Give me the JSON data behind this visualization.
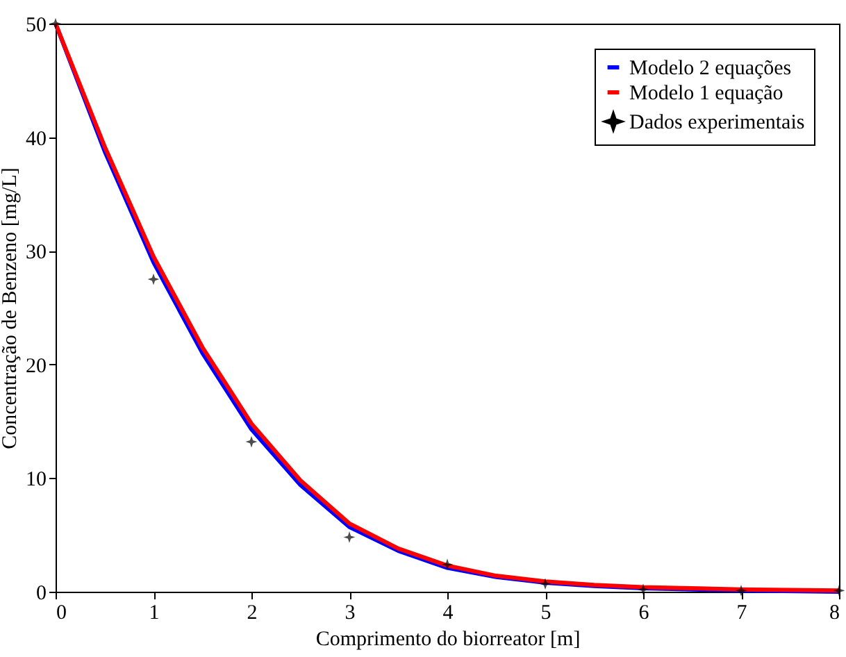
{
  "chart_data": {
    "type": "line",
    "xlabel": "Comprimento do biorreator [m]",
    "ylabel": "Concentração de Benzeno [mg/L]",
    "xlim": [
      0,
      8
    ],
    "xticks": [
      0,
      1,
      2,
      3,
      4,
      5,
      6,
      7,
      8
    ],
    "ylim": [
      0,
      50
    ],
    "yticks": [
      0,
      10,
      20,
      30,
      40,
      50
    ],
    "grid": false,
    "legend": "top right",
    "line_style": "solid",
    "series": [
      {
        "name": "Modelo 2 equações",
        "type": "line",
        "color": "#0000ff",
        "x": [
          0,
          0.5,
          1,
          1.5,
          2,
          2.5,
          3,
          3.5,
          4,
          4.5,
          5,
          5.5,
          6,
          7,
          8
        ],
        "values": [
          50,
          38.8,
          29,
          21,
          14.3,
          9.4,
          5.7,
          3.6,
          2.1,
          1.3,
          0.8,
          0.5,
          0.3,
          0.1,
          0.0
        ]
      },
      {
        "name": "Modelo 1 equação",
        "type": "line",
        "color": "#ff0000",
        "x": [
          0,
          0.5,
          1,
          1.5,
          2,
          2.5,
          3,
          3.5,
          4,
          4.5,
          5,
          5.5,
          6,
          7,
          8
        ],
        "values": [
          50,
          39.2,
          29.5,
          21.5,
          14.8,
          9.8,
          6.0,
          3.8,
          2.3,
          1.4,
          0.9,
          0.6,
          0.4,
          0.2,
          0.1
        ]
      },
      {
        "name": "Dados experimentais",
        "type": "scatter",
        "marker": "star",
        "color": "#000000",
        "x": [
          0,
          1,
          2,
          3,
          4,
          5,
          6,
          7,
          8
        ],
        "values": [
          50,
          27.5,
          13.2,
          4.8,
          2.4,
          0.7,
          0.2,
          0.1,
          0.1
        ]
      }
    ]
  }
}
